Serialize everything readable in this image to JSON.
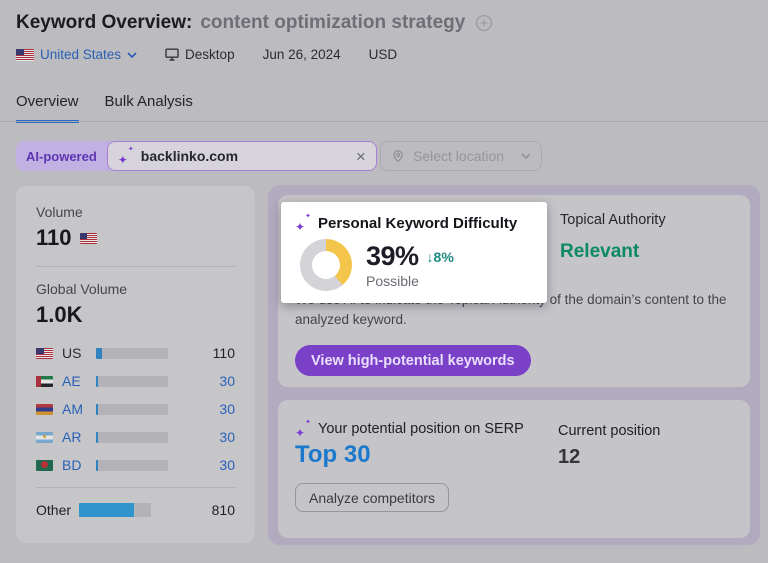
{
  "header": {
    "title": "Keyword Overview:",
    "keyword": "content optimization strategy",
    "database": "United States",
    "device": "Desktop",
    "date": "Jun 26, 2024",
    "currency": "USD"
  },
  "tabs": {
    "overview": "Overview",
    "bulk_analysis": "Bulk Analysis"
  },
  "search": {
    "ai_badge": "AI-powered",
    "domain_value": "backlinko.com",
    "location_placeholder": "Select location"
  },
  "left_panel": {
    "volume_label": "Volume",
    "volume_value": "110",
    "global_volume_label": "Global Volume",
    "global_volume_value": "1.0K",
    "countries": [
      {
        "code": "US",
        "value": "110",
        "bar_pct": 9
      },
      {
        "code": "AE",
        "value": "30",
        "bar_pct": 3
      },
      {
        "code": "AM",
        "value": "30",
        "bar_pct": 3
      },
      {
        "code": "AR",
        "value": "30",
        "bar_pct": 3
      },
      {
        "code": "BD",
        "value": "30",
        "bar_pct": 3
      }
    ],
    "other_label": "Other",
    "other_value": "810",
    "other_bar_pct": 76
  },
  "difficulty": {
    "title": "Personal Keyword Difficulty",
    "percent_label": "39%",
    "percent_value": 39,
    "change": "↓8%",
    "level": "Possible"
  },
  "topical_authority": {
    "label": "Topical Authority",
    "value": "Relevant"
  },
  "description": "We use AI to indicate the Topical Authority of the domain’s content to the analyzed keyword.",
  "buttons": {
    "view_keywords": "View high-potential keywords",
    "analyze_competitors": "Analyze competitors"
  },
  "serp": {
    "potential_label": "Your potential position on SERP",
    "potential_value": "Top 30",
    "current_label": "Current position",
    "current_value": "12"
  },
  "icons": {
    "sparkle": "✦",
    "close": "×"
  },
  "colors": {
    "donut_fill": "#f4c54b",
    "donut_track": "#d3d3d8",
    "accent_purple": "#7b40c8",
    "accent_blue": "#1a79cc",
    "green": "#0c8a62",
    "teal": "#1d8a80"
  }
}
